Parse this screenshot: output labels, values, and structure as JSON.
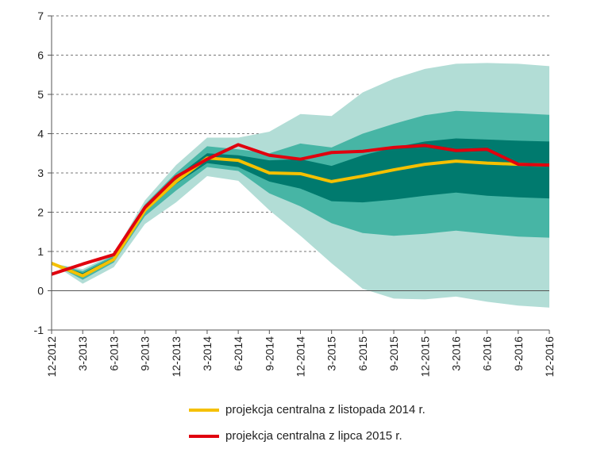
{
  "chart_data": {
    "type": "area",
    "categories": [
      "12-2012",
      "3-2013",
      "6-2013",
      "9-2013",
      "12-2013",
      "3-2014",
      "6-2014",
      "9-2014",
      "12-2014",
      "3-2015",
      "6-2015",
      "9-2015",
      "12-2015",
      "3-2016",
      "6-2016",
      "9-2016",
      "12-2016"
    ],
    "ylim": [
      -1,
      7
    ],
    "yticks": [
      -1,
      0,
      1,
      2,
      3,
      4,
      5,
      6,
      7
    ],
    "grid": "horizontal-dashed",
    "legend_position": "bottom",
    "fan_bands": {
      "colors": [
        "#b2ddd6",
        "#47b5a5",
        "#007a6e"
      ],
      "outer_upper": [
        0.7,
        0.55,
        0.95,
        2.3,
        3.2,
        3.9,
        3.9,
        4.05,
        4.5,
        4.45,
        5.05,
        5.4,
        5.65,
        5.78,
        5.8,
        5.78,
        5.72
      ],
      "mid_upper": [
        0.7,
        0.5,
        0.9,
        2.2,
        3.0,
        3.68,
        3.6,
        3.5,
        3.75,
        3.65,
        4.0,
        4.25,
        4.47,
        4.58,
        4.55,
        4.52,
        4.48
      ],
      "inner_upper": [
        0.7,
        0.45,
        0.85,
        2.12,
        2.9,
        3.5,
        3.45,
        3.32,
        3.35,
        3.18,
        3.45,
        3.65,
        3.8,
        3.88,
        3.85,
        3.82,
        3.8
      ],
      "inner_lower": [
        0.7,
        0.35,
        0.78,
        2.0,
        2.72,
        3.25,
        3.15,
        2.78,
        2.6,
        2.28,
        2.25,
        2.32,
        2.42,
        2.5,
        2.42,
        2.38,
        2.35
      ],
      "mid_lower": [
        0.7,
        0.28,
        0.72,
        1.9,
        2.55,
        3.15,
        3.05,
        2.48,
        2.15,
        1.72,
        1.47,
        1.4,
        1.45,
        1.53,
        1.45,
        1.38,
        1.35
      ],
      "outer_lower": [
        0.7,
        0.18,
        0.6,
        1.7,
        2.25,
        2.92,
        2.8,
        2.05,
        1.4,
        0.7,
        0.05,
        -0.2,
        -0.22,
        -0.15,
        -0.28,
        -0.38,
        -0.43
      ]
    },
    "series": [
      {
        "name": "projekcja centralna z listopada 2014 r.",
        "color": "#f5c000",
        "values": [
          0.7,
          0.38,
          0.8,
          2.05,
          2.78,
          3.38,
          3.32,
          3.0,
          2.98,
          2.78,
          2.92,
          3.08,
          3.22,
          3.3,
          3.25,
          3.22,
          3.2
        ]
      },
      {
        "name": "projekcja centralna z lipca 2015 r.",
        "color": "#e0000e",
        "values": [
          0.42,
          0.68,
          0.92,
          2.12,
          2.9,
          3.35,
          3.72,
          3.45,
          3.35,
          3.52,
          3.55,
          3.65,
          3.7,
          3.57,
          3.6,
          3.22,
          3.2
        ]
      }
    ]
  }
}
